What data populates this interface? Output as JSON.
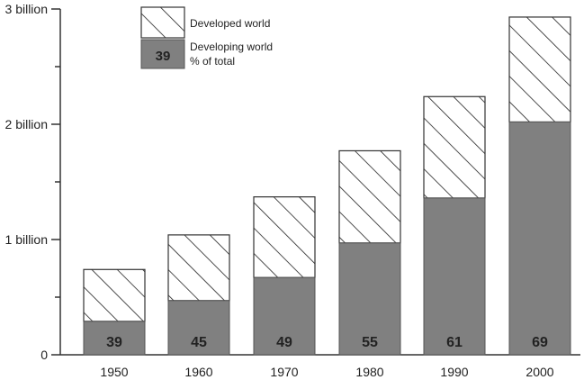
{
  "chart_data": {
    "type": "bar",
    "stacked": true,
    "categories": [
      "1950",
      "1960",
      "1970",
      "1980",
      "1990",
      "2000"
    ],
    "series": [
      {
        "name": "Developing world",
        "values": [
          0.29,
          0.47,
          0.67,
          0.97,
          1.36,
          2.02
        ],
        "fill": "#808080"
      },
      {
        "name": "Developed world",
        "values": [
          0.45,
          0.57,
          0.7,
          0.8,
          0.88,
          0.91
        ],
        "fill": "hatch"
      }
    ],
    "pct_label": "% of total",
    "pct_values": [
      "39",
      "45",
      "49",
      "55",
      "61",
      "69"
    ],
    "legend_sample_value": "39",
    "y_ticks": [
      {
        "value": 0,
        "label": "0"
      },
      {
        "value": 1,
        "label": "1 billion"
      },
      {
        "value": 2,
        "label": "2 billion"
      },
      {
        "value": 3,
        "label": "3 billion"
      }
    ],
    "ylim": [
      0,
      3
    ],
    "legend_position": "top-left",
    "grid": false,
    "colors": {
      "developing": "#808080",
      "hatch_line": "#222222",
      "axis": "#333333",
      "pct_text": "#222222"
    }
  }
}
